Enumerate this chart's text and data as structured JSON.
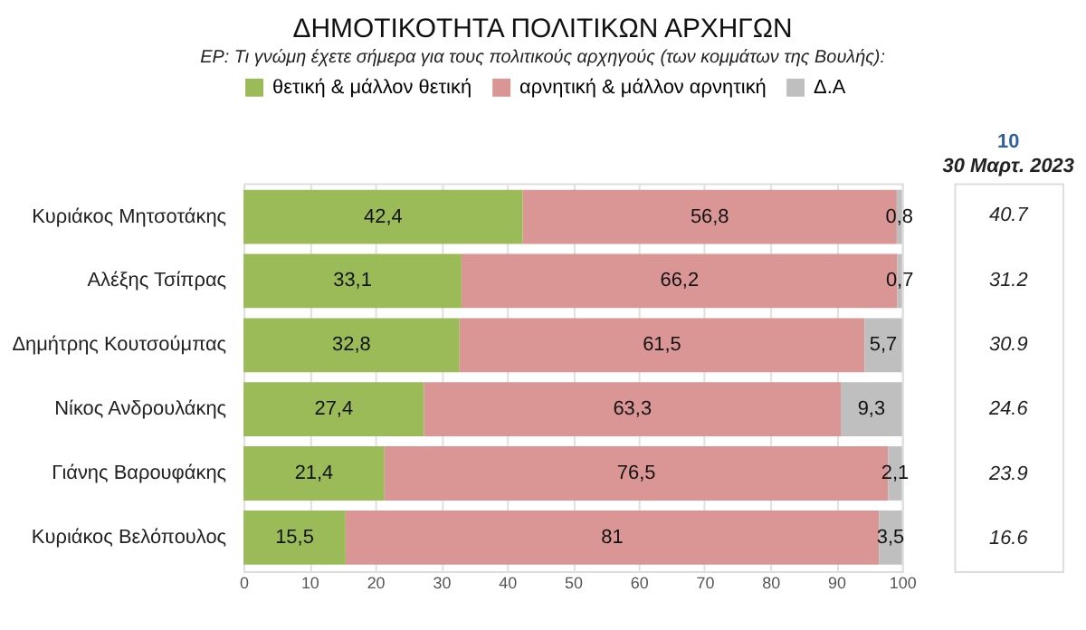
{
  "chart_data": {
    "type": "bar",
    "orientation": "horizontal",
    "stacked": true,
    "title": "ΔΗΜΟΤΙΚΟΤΗΤΑ ΠΟΛΙΤΙΚΩΝ ΑΡΧΗΓΩΝ",
    "subtitle": "ΕΡ: Τι γνώμη έχετε σήμερα για τους πολιτικούς αρχηγούς (των κομμάτων της Βουλής):",
    "categories": [
      "Κυριάκος Μητσοτάκης",
      "Αλέξης Τσίπρας",
      "Δημήτρης Κουτσούμπας",
      "Νίκος Ανδρουλάκης",
      "Γιάνης Βαρουφάκης",
      "Κυριάκος Βελόπουλος"
    ],
    "series": [
      {
        "name": "θετική & μάλλον θετική",
        "color": "#9bbb59",
        "values": [
          42.4,
          33.1,
          32.8,
          27.4,
          21.4,
          15.5
        ],
        "value_labels": [
          "42,4",
          "33,1",
          "32,8",
          "27,4",
          "21,4",
          "15,5"
        ]
      },
      {
        "name": "αρνητική & μάλλον αρνητική",
        "color": "#d99694",
        "values": [
          56.8,
          66.2,
          61.5,
          63.3,
          76.5,
          81
        ],
        "value_labels": [
          "56,8",
          "66,2",
          "61,5",
          "63,3",
          "76,5",
          "81"
        ]
      },
      {
        "name": "Δ.Α",
        "color": "#bfbfbf",
        "values": [
          0.8,
          0.7,
          5.7,
          9.3,
          2.1,
          3.5
        ],
        "value_labels": [
          "0,8",
          "0,7",
          "5,7",
          "9,3",
          "2,1",
          "3,5"
        ]
      }
    ],
    "xlim": [
      0,
      100
    ],
    "xticks": [
      0,
      10,
      20,
      30,
      40,
      50,
      60,
      70,
      80,
      90,
      100
    ],
    "grid": "x",
    "legend": "top",
    "annotations": [
      "30 Μαρτ. 2023",
      "10",
      "40.7",
      "31.2",
      "30.9",
      "24.6",
      "23.9",
      "16.6"
    ]
  }
}
